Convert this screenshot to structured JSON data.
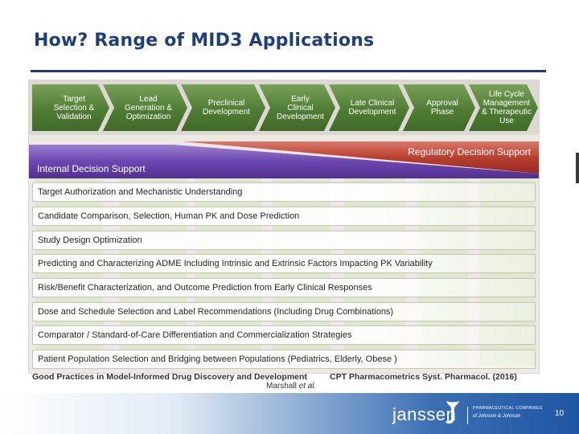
{
  "title": "How? Range of MID3 Applications",
  "phases": [
    "Target\nSelection &\nValidation",
    "Lead\nGeneration &\nOptimization",
    "Preclinical\nDevelopment",
    "Early\nClinical\nDevelopment",
    "Late Clinical\nDevelopment",
    "Approval\nPhase",
    "Life Cycle\nManagement\n& Therapeutic\nUse"
  ],
  "bands": {
    "regulatory": "Regulatory Decision Support",
    "internal": "Internal Decision Support"
  },
  "applications": [
    "Target Authorization and Mechanistic Understanding",
    "Candidate Comparison, Selection, Human PK and Dose Prediction",
    "Study Design Optimization",
    "Predicting and Characterizing ADME Including Intrinsic and Extrinsic Factors Impacting PK Variability",
    "Risk/Benefit Characterization, and Outcome Prediction from Early Clinical Responses",
    "Dose and Schedule Selection and Label Recommendations (Including Drug Combinations)",
    "Comparator / Standard-of-Care Differentiation and Commercialization Strategies",
    "Patient Population Selection and Bridging between Populations (Pediatrics, Elderly, Obese )"
  ],
  "citation": {
    "left": "Good Practices in Model-Informed Drug Discovery and Development",
    "right": "CPT Pharmacometrics Syst. Pharmacol. (2016)",
    "author": "Marshall",
    "etal": "et al."
  },
  "footer": {
    "logo": "janssen",
    "sub1": "PHARMACEUTICAL COMPANIES",
    "sub2": "of Johnson & Johnson",
    "page": "10"
  }
}
